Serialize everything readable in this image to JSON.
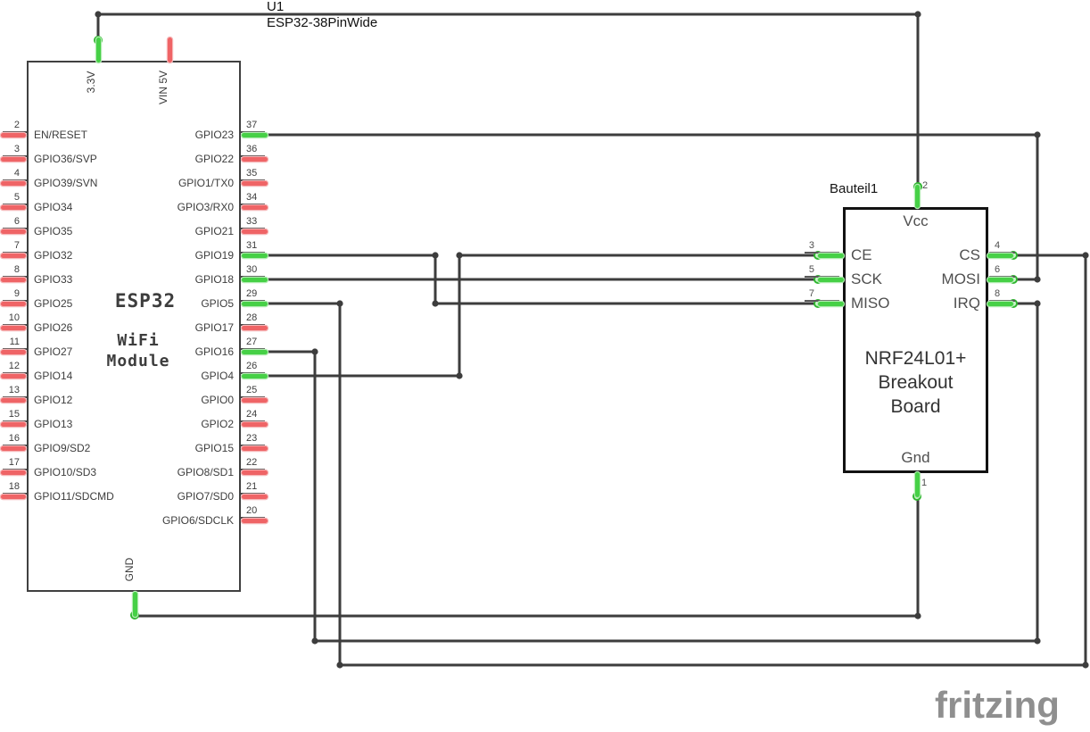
{
  "schematic": {
    "designator": "U1",
    "part_name": "ESP32-38PinWide",
    "watermark": "fritzing"
  },
  "esp32": {
    "name": "ESP32",
    "sub_lines": [
      "WiFi",
      "Module"
    ],
    "top_pins": [
      {
        "label": "3.3V",
        "connected": true
      },
      {
        "label": "VIN 5V",
        "connected": false
      }
    ],
    "bottom_pins": [
      {
        "label": "GND",
        "connected": true
      }
    ],
    "left_pins": [
      {
        "number": "2",
        "label": "EN/RESET",
        "connected": false
      },
      {
        "number": "3",
        "label": "GPIO36/SVP",
        "connected": false
      },
      {
        "number": "4",
        "label": "GPIO39/SVN",
        "connected": false
      },
      {
        "number": "5",
        "label": "GPIO34",
        "connected": false
      },
      {
        "number": "6",
        "label": "GPIO35",
        "connected": false
      },
      {
        "number": "7",
        "label": "GPIO32",
        "connected": false
      },
      {
        "number": "8",
        "label": "GPIO33",
        "connected": false
      },
      {
        "number": "9",
        "label": "GPIO25",
        "connected": false
      },
      {
        "number": "10",
        "label": "GPIO26",
        "connected": false
      },
      {
        "number": "11",
        "label": "GPIO27",
        "connected": false
      },
      {
        "number": "12",
        "label": "GPIO14",
        "connected": false
      },
      {
        "number": "13",
        "label": "GPIO12",
        "connected": false
      },
      {
        "number": "15",
        "label": "GPIO13",
        "connected": false
      },
      {
        "number": "16",
        "label": "GPIO9/SD2",
        "connected": false
      },
      {
        "number": "17",
        "label": "GPIO10/SD3",
        "connected": false
      },
      {
        "number": "18",
        "label": "GPIO11/SDCMD",
        "connected": false
      }
    ],
    "right_pins": [
      {
        "number": "37",
        "label": "GPIO23",
        "connected": true
      },
      {
        "number": "36",
        "label": "GPIO22",
        "connected": false
      },
      {
        "number": "35",
        "label": "GPIO1/TX0",
        "connected": false
      },
      {
        "number": "34",
        "label": "GPIO3/RX0",
        "connected": false
      },
      {
        "number": "33",
        "label": "GPIO21",
        "connected": false
      },
      {
        "number": "31",
        "label": "GPIO19",
        "connected": true
      },
      {
        "number": "30",
        "label": "GPIO18",
        "connected": true
      },
      {
        "number": "29",
        "label": "GPIO5",
        "connected": true
      },
      {
        "number": "28",
        "label": "GPIO17",
        "connected": false
      },
      {
        "number": "27",
        "label": "GPIO16",
        "connected": true
      },
      {
        "number": "26",
        "label": "GPIO4",
        "connected": true
      },
      {
        "number": "25",
        "label": "GPIO0",
        "connected": false
      },
      {
        "number": "24",
        "label": "GPIO2",
        "connected": false
      },
      {
        "number": "23",
        "label": "GPIO15",
        "connected": false
      },
      {
        "number": "22",
        "label": "GPIO8/SD1",
        "connected": false
      },
      {
        "number": "21",
        "label": "GPIO7/SD0",
        "connected": false
      },
      {
        "number": "20",
        "label": "GPIO6/SDCLK",
        "connected": false
      }
    ]
  },
  "nrf": {
    "designator": "Bauteil1",
    "name_lines": [
      "NRF24L01+",
      "Breakout",
      "Board"
    ],
    "top_pins": [
      {
        "number": "2",
        "label": "Vcc"
      }
    ],
    "bottom_pins": [
      {
        "number": "1",
        "label": "Gnd"
      }
    ],
    "left_pins": [
      {
        "number": "3",
        "label": "CE"
      },
      {
        "number": "5",
        "label": "SCK"
      },
      {
        "number": "7",
        "label": "MISO"
      }
    ],
    "right_pins": [
      {
        "number": "4",
        "label": "CS"
      },
      {
        "number": "6",
        "label": "MOSI"
      },
      {
        "number": "8",
        "label": "IRQ"
      }
    ]
  },
  "nets": [
    {
      "name": "vcc",
      "from": "ESP32 3.3V",
      "to": "NRF Vcc"
    },
    {
      "name": "mosi",
      "from": "ESP32 GPIO23",
      "to": "NRF MOSI"
    },
    {
      "name": "miso",
      "from": "ESP32 GPIO19",
      "to": "NRF MISO"
    },
    {
      "name": "sck",
      "from": "ESP32 GPIO18",
      "to": "NRF SCK"
    },
    {
      "name": "cs",
      "from": "ESP32 GPIO5",
      "to": "NRF CS"
    },
    {
      "name": "irq",
      "from": "ESP32 GPIO16",
      "to": "NRF IRQ"
    },
    {
      "name": "ce",
      "from": "ESP32 GPIO4",
      "to": "NRF CE"
    },
    {
      "name": "gnd",
      "from": "ESP32 GND",
      "to": "NRF Gnd"
    }
  ],
  "colors": {
    "wire": "#3d3d3d",
    "connected": "#46d046",
    "connected_glow": "#b2ecb2",
    "unconnected": "#ef6466",
    "unconnected_glow": "#f6b8b9",
    "ring_stroke": "#2fb52f",
    "ring_fill": "#cdf5cd"
  }
}
